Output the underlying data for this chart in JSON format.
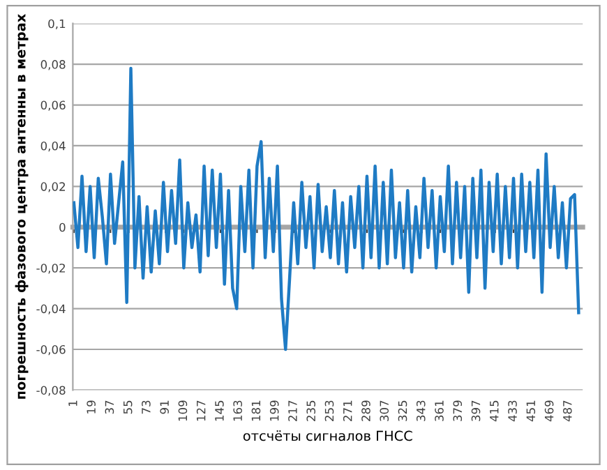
{
  "chart_data": {
    "type": "line",
    "ylabel": "погрешность фазового центра антенны в метрах",
    "xlabel": "отсчёты сигналов ГНСС",
    "x": [
      1,
      5,
      9,
      13,
      17,
      21,
      25,
      29,
      33,
      37,
      41,
      45,
      49,
      53,
      57,
      61,
      65,
      69,
      73,
      77,
      81,
      85,
      89,
      93,
      97,
      101,
      105,
      109,
      113,
      117,
      121,
      125,
      129,
      133,
      137,
      141,
      145,
      149,
      153,
      157,
      161,
      165,
      169,
      173,
      177,
      181,
      185,
      189,
      193,
      197,
      201,
      205,
      209,
      213,
      217,
      221,
      225,
      229,
      233,
      237,
      241,
      245,
      249,
      253,
      257,
      261,
      265,
      269,
      273,
      277,
      281,
      285,
      289,
      293,
      297,
      301,
      305,
      309,
      313,
      317,
      321,
      325,
      329,
      333,
      337,
      341,
      345,
      349,
      353,
      357,
      361,
      365,
      369,
      373,
      377,
      381,
      385,
      389,
      393,
      397,
      401,
      405,
      409,
      413,
      417,
      421,
      425,
      429,
      433,
      437,
      441,
      445,
      449,
      453,
      457,
      461,
      465,
      469,
      473,
      477,
      481,
      485,
      489,
      493,
      497
    ],
    "series": [
      {
        "color": "#1f7bc4",
        "values": [
          0.012,
          -0.01,
          0.025,
          -0.012,
          0.02,
          -0.015,
          0.024,
          0.005,
          -0.018,
          0.026,
          -0.008,
          0.012,
          0.032,
          -0.037,
          0.078,
          -0.02,
          0.015,
          -0.025,
          0.01,
          -0.022,
          0.008,
          -0.018,
          0.022,
          -0.012,
          0.018,
          -0.008,
          0.033,
          -0.02,
          0.012,
          -0.01,
          0.006,
          -0.022,
          0.03,
          -0.014,
          0.028,
          -0.01,
          0.026,
          -0.028,
          0.018,
          -0.03,
          -0.04,
          0.02,
          -0.012,
          0.028,
          -0.02,
          0.03,
          0.042,
          -0.015,
          0.024,
          -0.012,
          0.03,
          -0.035,
          -0.06,
          -0.025,
          0.012,
          -0.018,
          0.022,
          -0.01,
          0.015,
          -0.02,
          0.021,
          -0.012,
          0.01,
          -0.015,
          0.018,
          -0.018,
          0.012,
          -0.022,
          0.015,
          -0.01,
          0.02,
          -0.02,
          0.025,
          -0.015,
          0.03,
          -0.02,
          0.022,
          -0.018,
          0.028,
          -0.015,
          0.012,
          -0.02,
          0.018,
          -0.022,
          0.01,
          -0.015,
          0.024,
          -0.01,
          0.018,
          -0.02,
          0.015,
          -0.012,
          0.03,
          -0.018,
          0.022,
          -0.015,
          0.02,
          -0.032,
          0.024,
          -0.015,
          0.028,
          -0.03,
          0.022,
          -0.012,
          0.026,
          -0.018,
          0.02,
          -0.015,
          0.024,
          -0.02,
          0.026,
          -0.012,
          0.022,
          -0.015,
          0.028,
          -0.032,
          0.036,
          -0.01,
          0.02,
          -0.015,
          0.012,
          -0.02,
          0.014,
          0.016,
          -0.042
        ]
      }
    ],
    "xlim": [
      0,
      501
    ],
    "xticks": [
      1,
      19,
      37,
      55,
      73,
      91,
      109,
      127,
      145,
      163,
      181,
      199,
      217,
      235,
      253,
      271,
      289,
      307,
      325,
      343,
      361,
      379,
      397,
      415,
      433,
      451,
      469,
      487
    ],
    "ylim": [
      -0.08,
      0.1
    ],
    "yticks": [
      {
        "value": -0.08,
        "label": "-0,08"
      },
      {
        "value": -0.06,
        "label": "-0,06"
      },
      {
        "value": -0.04,
        "label": "-0,04"
      },
      {
        "value": -0.02,
        "label": "-0,02"
      },
      {
        "value": 0,
        "label": "0"
      },
      {
        "value": 0.02,
        "label": "0,02"
      },
      {
        "value": 0.04,
        "label": "0,04"
      },
      {
        "value": 0.06,
        "label": "0,06"
      },
      {
        "value": 0.08,
        "label": "0,08"
      },
      {
        "value": 0.1,
        "label": "0,1"
      }
    ],
    "grid": "y",
    "legend": false,
    "marker": "none",
    "line_style": "solid"
  }
}
